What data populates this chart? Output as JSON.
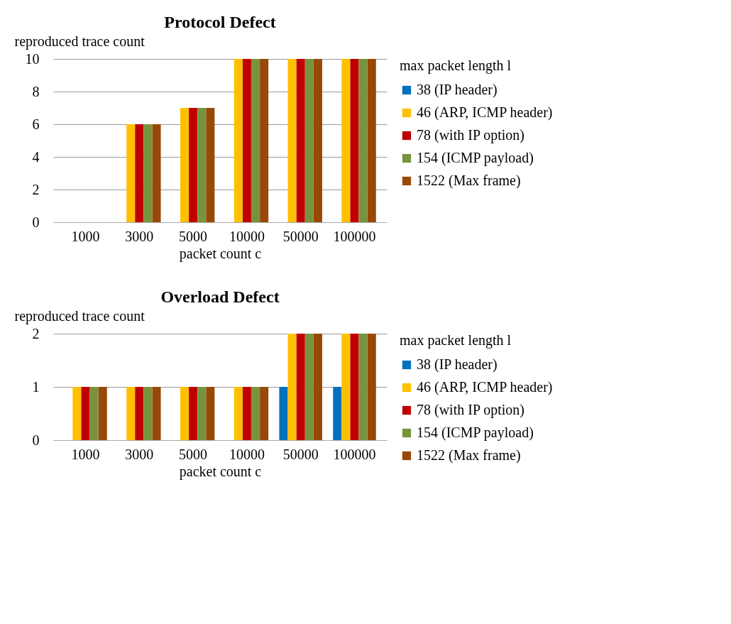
{
  "chart_data": [
    {
      "type": "bar",
      "title": "Protocol Defect",
      "xlabel": "packet count c",
      "ylabel": "reproduced trace count",
      "legend_title": "max packet length l",
      "categories": [
        "1000",
        "3000",
        "5000",
        "10000",
        "50000",
        "100000"
      ],
      "series": [
        {
          "name": "38 (IP header)",
          "color": "#0070c0",
          "values": [
            0,
            0,
            0,
            0,
            0,
            0
          ]
        },
        {
          "name": "46 (ARP, ICMP header)",
          "color": "#ffc000",
          "values": [
            0,
            6,
            7,
            10,
            10,
            10
          ]
        },
        {
          "name": "78 (with IP option)",
          "color": "#c00000",
          "values": [
            0,
            6,
            7,
            10,
            10,
            10
          ]
        },
        {
          "name": "154 (ICMP payload)",
          "color": "#77933c",
          "values": [
            0,
            6,
            7,
            10,
            10,
            10
          ]
        },
        {
          "name": "1522 (Max frame)",
          "color": "#984807",
          "values": [
            0,
            6,
            7,
            10,
            10,
            10
          ]
        }
      ],
      "ylim": [
        0,
        10
      ],
      "yticks": [
        0,
        2,
        4,
        6,
        8,
        10
      ],
      "grid": "y",
      "legend": "right"
    },
    {
      "type": "bar",
      "title": "Overload Defect",
      "xlabel": "packet count c",
      "ylabel": "reproduced trace count",
      "legend_title": "max packet length l",
      "categories": [
        "1000",
        "3000",
        "5000",
        "10000",
        "50000",
        "100000"
      ],
      "series": [
        {
          "name": "38 (IP header)",
          "color": "#0070c0",
          "values": [
            0,
            0,
            0,
            0,
            1,
            1
          ]
        },
        {
          "name": "46 (ARP, ICMP header)",
          "color": "#ffc000",
          "values": [
            1,
            1,
            1,
            1,
            2,
            2
          ]
        },
        {
          "name": "78 (with IP option)",
          "color": "#c00000",
          "values": [
            1,
            1,
            1,
            1,
            2,
            2
          ]
        },
        {
          "name": "154 (ICMP payload)",
          "color": "#77933c",
          "values": [
            1,
            1,
            1,
            1,
            2,
            2
          ]
        },
        {
          "name": "1522 (Max frame)",
          "color": "#984807",
          "values": [
            1,
            1,
            1,
            1,
            2,
            2
          ]
        }
      ],
      "ylim": [
        0,
        2
      ],
      "yticks": [
        0,
        1,
        2
      ],
      "grid": "y",
      "legend": "right"
    }
  ]
}
